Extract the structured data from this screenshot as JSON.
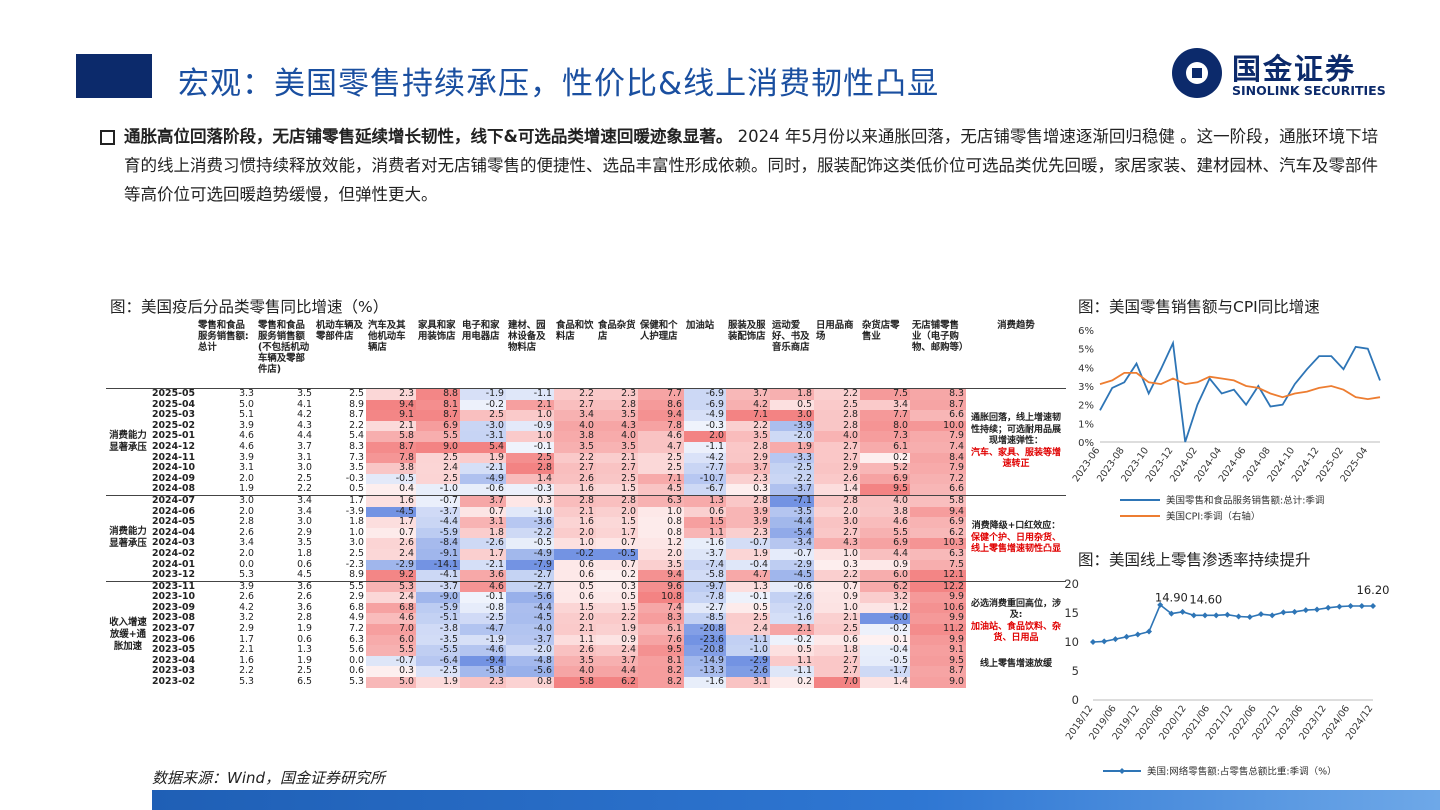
{
  "header": {
    "title": "宏观：美国零售持续承压，性价比&线上消费韧性凸显",
    "logo_cn": "国金证券",
    "logo_en": "SINOLINK SECURITIES"
  },
  "bullet": {
    "bold": "通胀高位回落阶段，无店铺零售延续增长韧性，线下&可选品类增速回暖迹象显著。",
    "text": "2024 年5月份以来通胀回落，无店铺零售增速逐渐回归稳健 。这一阶段，通胀环境下培育的线上消费习惯持续释放效能，消费者对无店铺零售的便捷性、选品丰富性形成依赖。同时，服装配饰这类低价位可选品类优先回暖，家居家装、建材园林、汽车及零部件等高价位可选回暖趋势缓慢，但弹性更大。"
  },
  "table": {
    "caption": "图：美国疫后分品类零售同比增速（%）",
    "headers": [
      "",
      "",
      "零售和食品服务销售额:总计",
      "零售和食品服务销售额(不包括机动车辆及零部件店)",
      "机动车辆及零部件店",
      "汽车及其他机动车辆店",
      "家具和家用装饰店",
      "电子和家用电器店",
      "建材、园林设备及物料店",
      "食品和饮料店",
      "食品杂货店",
      "保健和个人护理店",
      "加油站",
      "服装及服装配饰店",
      "运动爱好、书及音乐商店",
      "日用品商场",
      "杂货店零售业",
      "无店铺零售业（电子购物、邮购等）",
      "消费趋势"
    ],
    "groups": [
      {
        "label": "消费能力显著承压",
        "trend_black": "通胀回落，线上增速韧性持续；可选耐用品展现增速弹性：",
        "trend_red": "汽车、家具、服装等增速转正",
        "rows": [
          {
            "date": "2025-05",
            "v": [
              "3.3",
              "3.5",
              "2.5",
              "2.3",
              "8.8",
              "-1.9",
              "-1.1",
              "2.2",
              "2.3",
              "7.7",
              "-6.9",
              "3.7",
              "1.8",
              "2.2",
              "7.5",
              "8.3"
            ]
          },
          {
            "date": "2025-04",
            "v": [
              "5.0",
              "4.1",
              "8.9",
              "9.4",
              "8.1",
              "-0.2",
              "2.1",
              "2.7",
              "2.8",
              "8.6",
              "-6.9",
              "4.2",
              "0.5",
              "2.5",
              "3.4",
              "8.7"
            ]
          },
          {
            "date": "2025-03",
            "v": [
              "5.1",
              "4.2",
              "8.7",
              "9.1",
              "8.7",
              "2.5",
              "1.0",
              "3.4",
              "3.5",
              "9.4",
              "-4.9",
              "7.1",
              "3.0",
              "2.8",
              "7.7",
              "6.6"
            ]
          },
          {
            "date": "2025-02",
            "v": [
              "3.9",
              "4.3",
              "2.2",
              "2.1",
              "6.9",
              "-3.0",
              "-0.9",
              "4.0",
              "4.3",
              "7.8",
              "-0.3",
              "2.2",
              "-3.9",
              "2.8",
              "8.0",
              "10.0"
            ]
          },
          {
            "date": "2025-01",
            "v": [
              "4.6",
              "4.4",
              "5.4",
              "5.8",
              "5.5",
              "-3.1",
              "1.0",
              "3.8",
              "4.0",
              "4.6",
              "2.0",
              "3.5",
              "-2.0",
              "4.0",
              "7.3",
              "7.9"
            ]
          },
          {
            "date": "2024-12",
            "v": [
              "4.6",
              "3.7",
              "8.3",
              "8.7",
              "9.0",
              "5.4",
              "-0.1",
              "3.5",
              "3.5",
              "4.7",
              "-1.1",
              "2.8",
              "1.9",
              "2.7",
              "6.1",
              "7.4"
            ]
          },
          {
            "date": "2024-11",
            "v": [
              "3.9",
              "3.1",
              "7.3",
              "7.8",
              "2.5",
              "1.9",
              "2.5",
              "2.2",
              "2.1",
              "2.5",
              "-4.2",
              "2.9",
              "-3.3",
              "2.7",
              "0.2",
              "8.4"
            ]
          },
          {
            "date": "2024-10",
            "v": [
              "3.1",
              "3.0",
              "3.5",
              "3.8",
              "2.4",
              "-2.1",
              "2.8",
              "2.7",
              "2.7",
              "2.5",
              "-7.7",
              "3.7",
              "-2.5",
              "2.9",
              "5.2",
              "7.9"
            ]
          },
          {
            "date": "2024-09",
            "v": [
              "2.0",
              "2.5",
              "-0.3",
              "-0.5",
              "2.5",
              "-4.9",
              "1.4",
              "2.6",
              "2.5",
              "7.1",
              "-10.7",
              "2.3",
              "-2.2",
              "2.6",
              "6.9",
              "7.2"
            ]
          },
          {
            "date": "2024-08",
            "v": [
              "1.9",
              "2.2",
              "0.5",
              "0.4",
              "-1.0",
              "-0.6",
              "-0.3",
              "1.6",
              "1.5",
              "4.5",
              "-6.7",
              "0.3",
              "-3.7",
              "1.4",
              "9.5",
              "6.6"
            ]
          }
        ]
      },
      {
        "label": "消费能力显著承压",
        "trend_black": "消费降级+口红效应：",
        "trend_red": "保健个护、日用杂货、线上零售增速韧性凸显",
        "rows": [
          {
            "date": "2024-07",
            "v": [
              "3.0",
              "3.4",
              "1.7",
              "1.6",
              "-0.7",
              "3.7",
              "0.3",
              "2.8",
              "2.8",
              "6.3",
              "1.3",
              "2.8",
              "-7.1",
              "2.8",
              "4.0",
              "5.8"
            ]
          },
          {
            "date": "2024-06",
            "v": [
              "2.0",
              "3.4",
              "-3.9",
              "-4.5",
              "-3.7",
              "0.7",
              "-1.0",
              "2.1",
              "2.0",
              "1.0",
              "0.6",
              "3.9",
              "-3.5",
              "2.0",
              "3.8",
              "9.4"
            ]
          },
          {
            "date": "2024-05",
            "v": [
              "2.8",
              "3.0",
              "1.8",
              "1.7",
              "-4.4",
              "3.1",
              "-3.6",
              "1.6",
              "1.5",
              "0.8",
              "1.5",
              "3.9",
              "-4.4",
              "3.0",
              "4.6",
              "6.9"
            ]
          },
          {
            "date": "2024-04",
            "v": [
              "2.6",
              "2.9",
              "1.0",
              "0.7",
              "-5.9",
              "1.8",
              "-2.2",
              "2.0",
              "1.7",
              "0.8",
              "1.1",
              "2.3",
              "-5.4",
              "2.7",
              "5.5",
              "6.2"
            ]
          },
          {
            "date": "2024-03",
            "v": [
              "3.4",
              "3.5",
              "3.0",
              "2.6",
              "-8.4",
              "-2.6",
              "-0.5",
              "1.0",
              "0.7",
              "1.2",
              "-1.6",
              "-0.7",
              "-3.4",
              "4.3",
              "6.9",
              "10.3"
            ]
          },
          {
            "date": "2024-02",
            "v": [
              "2.0",
              "1.8",
              "2.5",
              "2.4",
              "-9.1",
              "1.7",
              "-4.9",
              "-0.2",
              "-0.5",
              "2.0",
              "-3.7",
              "1.9",
              "-0.7",
              "1.0",
              "4.4",
              "6.3"
            ]
          },
          {
            "date": "2024-01",
            "v": [
              "0.0",
              "0.6",
              "-2.3",
              "-2.9",
              "-14.1",
              "-2.1",
              "-7.9",
              "0.6",
              "0.7",
              "3.5",
              "-7.4",
              "-0.4",
              "-2.9",
              "0.3",
              "0.9",
              "7.5"
            ]
          },
          {
            "date": "2023-12",
            "v": [
              "5.3",
              "4.5",
              "8.9",
              "9.2",
              "-4.1",
              "3.6",
              "-2.7",
              "0.6",
              "0.2",
              "9.4",
              "-5.8",
              "4.7",
              "-4.5",
              "2.2",
              "6.0",
              "12.1"
            ]
          }
        ]
      },
      {
        "label": "收入增速放缓+通胀加速",
        "trend_black": "必选消费重回高位，涉及:",
        "trend_red": "加油站、食品饮料、杂货、日用品",
        "trend_black2": "线上零售增速放缓",
        "rows": [
          {
            "date": "2023-11",
            "v": [
              "3.9",
              "3.6",
              "5.5",
              "5.3",
              "-3.7",
              "4.6",
              "-2.7",
              "0.5",
              "0.3",
              "9.6",
              "-9.7",
              "1.3",
              "-0.6",
              "0.7",
              "6.2",
              "12.2"
            ]
          },
          {
            "date": "2023-10",
            "v": [
              "2.6",
              "2.6",
              "2.9",
              "2.4",
              "-9.0",
              "-0.1",
              "-5.6",
              "0.6",
              "0.5",
              "10.8",
              "-7.8",
              "-0.1",
              "-2.6",
              "0.9",
              "3.2",
              "9.9"
            ]
          },
          {
            "date": "2023-09",
            "v": [
              "4.2",
              "3.6",
              "6.8",
              "6.8",
              "-5.9",
              "-0.8",
              "-4.4",
              "1.5",
              "1.5",
              "7.4",
              "-2.7",
              "0.5",
              "-2.0",
              "1.0",
              "1.2",
              "10.6"
            ]
          },
          {
            "date": "2023-08",
            "v": [
              "3.2",
              "2.8",
              "4.9",
              "4.6",
              "-5.1",
              "-2.5",
              "-4.5",
              "2.0",
              "2.2",
              "8.3",
              "-8.5",
              "2.5",
              "-1.6",
              "2.1",
              "-6.0",
              "9.9"
            ]
          },
          {
            "date": "2023-07",
            "v": [
              "2.9",
              "1.9",
              "7.2",
              "7.0",
              "-3.8",
              "-4.7",
              "-4.0",
              "2.1",
              "1.9",
              "6.1",
              "-20.8",
              "2.4",
              "2.1",
              "2.5",
              "-0.2",
              "11.2"
            ]
          },
          {
            "date": "2023-06",
            "v": [
              "1.7",
              "0.6",
              "6.3",
              "6.0",
              "-3.5",
              "-1.9",
              "-3.7",
              "1.1",
              "0.9",
              "7.6",
              "-23.6",
              "-1.1",
              "-0.2",
              "0.6",
              "0.1",
              "9.9"
            ]
          },
          {
            "date": "2023-05",
            "v": [
              "2.1",
              "1.3",
              "5.6",
              "5.5",
              "-5.5",
              "-4.6",
              "-2.0",
              "2.6",
              "2.4",
              "9.5",
              "-20.8",
              "-1.0",
              "0.5",
              "1.8",
              "-0.4",
              "9.1"
            ]
          },
          {
            "date": "2023-04",
            "v": [
              "1.6",
              "1.9",
              "0.0",
              "-0.7",
              "-6.4",
              "-9.4",
              "-4.8",
              "3.5",
              "3.7",
              "8.1",
              "-14.9",
              "-2.9",
              "1.1",
              "2.7",
              "-0.5",
              "9.5"
            ]
          },
          {
            "date": "2023-03",
            "v": [
              "2.2",
              "2.5",
              "0.6",
              "0.3",
              "-2.5",
              "-5.8",
              "-5.6",
              "4.0",
              "4.4",
              "8.2",
              "-13.3",
              "-2.6",
              "-1.1",
              "2.7",
              "-1.7",
              "8.7"
            ]
          },
          {
            "date": "2023-02",
            "v": [
              "5.3",
              "6.5",
              "5.3",
              "5.0",
              "1.9",
              "2.3",
              "0.8",
              "5.8",
              "6.2",
              "8.2",
              "-1.6",
              "3.1",
              "0.2",
              "7.0",
              "1.4",
              "9.0"
            ]
          }
        ]
      }
    ],
    "source": "数据来源：Wind，国金证券研究所"
  },
  "chart_data": [
    {
      "type": "line",
      "title": "图：美国零售销售额与CPI同比增速",
      "x": [
        "2023-06",
        "2023-07",
        "2023-08",
        "2023-09",
        "2023-10",
        "2023-11",
        "2023-12",
        "2024-01",
        "2024-02",
        "2024-03",
        "2024-04",
        "2024-05",
        "2024-06",
        "2024-07",
        "2024-08",
        "2024-09",
        "2024-10",
        "2024-11",
        "2024-12",
        "2025-01",
        "2025-02",
        "2025-03",
        "2025-04",
        "2025-05"
      ],
      "xticks": [
        "2023-06",
        "2023-08",
        "2023-10",
        "2023-12",
        "2024-02",
        "2024-04",
        "2024-06",
        "2024-08",
        "2024-10",
        "2024-12",
        "2025-02",
        "2025-04"
      ],
      "series": [
        {
          "name": "美国零售和食品服务销售额:总计:季调",
          "axis": "left",
          "color": "#2e75b6",
          "values": [
            1.7,
            2.9,
            3.2,
            4.2,
            2.6,
            3.9,
            5.3,
            0.0,
            2.0,
            3.4,
            2.6,
            2.8,
            2.0,
            3.0,
            1.9,
            2.0,
            3.1,
            3.9,
            4.6,
            4.6,
            3.9,
            5.1,
            5.0,
            3.3
          ]
        },
        {
          "name": "美国CPI:季调（右轴）",
          "axis": "right",
          "color": "#ed7d31",
          "values": [
            3.1,
            3.3,
            3.7,
            3.7,
            3.2,
            3.1,
            3.4,
            3.1,
            3.2,
            3.5,
            3.4,
            3.3,
            3.0,
            2.9,
            2.6,
            2.4,
            2.6,
            2.7,
            2.9,
            3.0,
            2.8,
            2.4,
            2.3,
            2.4
          ]
        }
      ],
      "yticks_left": [
        "0%",
        "1%",
        "2%",
        "3%",
        "4%",
        "5%",
        "6%"
      ],
      "ylim": [
        0,
        6
      ],
      "grid": false,
      "legend": "bottom"
    },
    {
      "type": "line",
      "title": "图：美国线上零售渗透率持续提升",
      "x": [
        "2018Q4",
        "2019Q1",
        "2019Q2",
        "2019Q3",
        "2019Q4",
        "2020Q1",
        "2020Q2",
        "2020Q3",
        "2020Q4",
        "2021Q1",
        "2021Q2",
        "2021Q3",
        "2021Q4",
        "2022Q1",
        "2022Q2",
        "2022Q3",
        "2022Q4",
        "2023Q1",
        "2023Q2",
        "2023Q3",
        "2023Q4",
        "2024Q1",
        "2024Q2",
        "2024Q3",
        "2024Q4",
        "2025Q1"
      ],
      "xticks": [
        "2018/12",
        "2019/06",
        "2019/12",
        "2020/06",
        "2020/12",
        "2021/06",
        "2021/12",
        "2022/06",
        "2022/12",
        "2023/06",
        "2023/12",
        "2024/06",
        "2024/12"
      ],
      "series": [
        {
          "name": "美国:网络零售额:占零售总额比重:季调（%）",
          "color": "#2e75b6",
          "values": [
            10.0,
            10.1,
            10.5,
            10.9,
            11.3,
            11.8,
            16.4,
            14.9,
            15.2,
            14.6,
            14.6,
            14.6,
            14.7,
            14.4,
            14.3,
            14.8,
            14.6,
            15.1,
            15.2,
            15.5,
            15.6,
            15.9,
            16.1,
            16.2,
            16.2,
            16.2
          ]
        }
      ],
      "annotations": [
        "14.90",
        "14.60",
        "16.20"
      ],
      "yticks": [
        "0",
        "5",
        "10",
        "15",
        "20"
      ],
      "ylim": [
        0,
        20
      ],
      "grid": false,
      "legend": "bottom"
    }
  ]
}
